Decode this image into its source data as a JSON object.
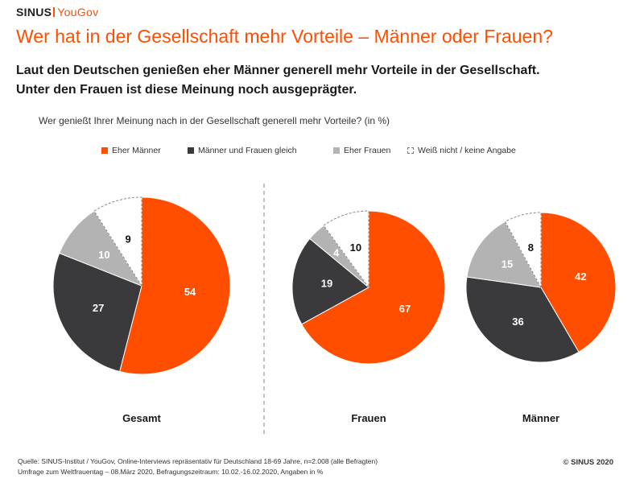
{
  "header": {
    "logo_part1": "SINUS",
    "logo_part2": "YouGov",
    "title": "Wer hat in der Gesellschaft mehr Vorteile – Männer oder Frauen?",
    "subtitle_line1": "Laut den Deutschen genießen eher Männer generell mehr Vorteile in der Gesellschaft.",
    "subtitle_line2": "Unter den Frauen ist diese Meinung noch ausgeprägter.",
    "question": "Wer genießt Ihrer Meinung nach in der Gesellschaft generell mehr Vorteile? (in %)"
  },
  "colors": {
    "men": "#ff4e00",
    "equal": "#3a3a3c",
    "women": "#b3b3b3",
    "unknown": "#ffffff",
    "accent": "#ff4e00"
  },
  "chart_data": {
    "type": "pie",
    "categories": [
      "Eher Männer",
      "Männer und Frauen gleich",
      "Eher Frauen",
      "Weiß nicht / keine Angabe"
    ],
    "legend_position": "top",
    "charts": [
      {
        "name": "Gesamt",
        "values": [
          54,
          27,
          10,
          9
        ]
      },
      {
        "name": "Frauen",
        "values": [
          67,
          19,
          4,
          10
        ]
      },
      {
        "name": "Männer",
        "values": [
          42,
          36,
          15,
          8
        ]
      }
    ]
  },
  "footer": {
    "source_line1": "Quelle: SINUS-Institut / YouGov, Online-Interviews repräsentativ für Deutschland 18-69 Jahre, n=2.008 (alle Befragten)",
    "source_line2": "Umfrage zum Weltfrauentag – 08.März 2020, Befragungszeitraum: 10.02.-16.02.2020, Angaben in %",
    "copyright": "© SINUS 2020"
  }
}
